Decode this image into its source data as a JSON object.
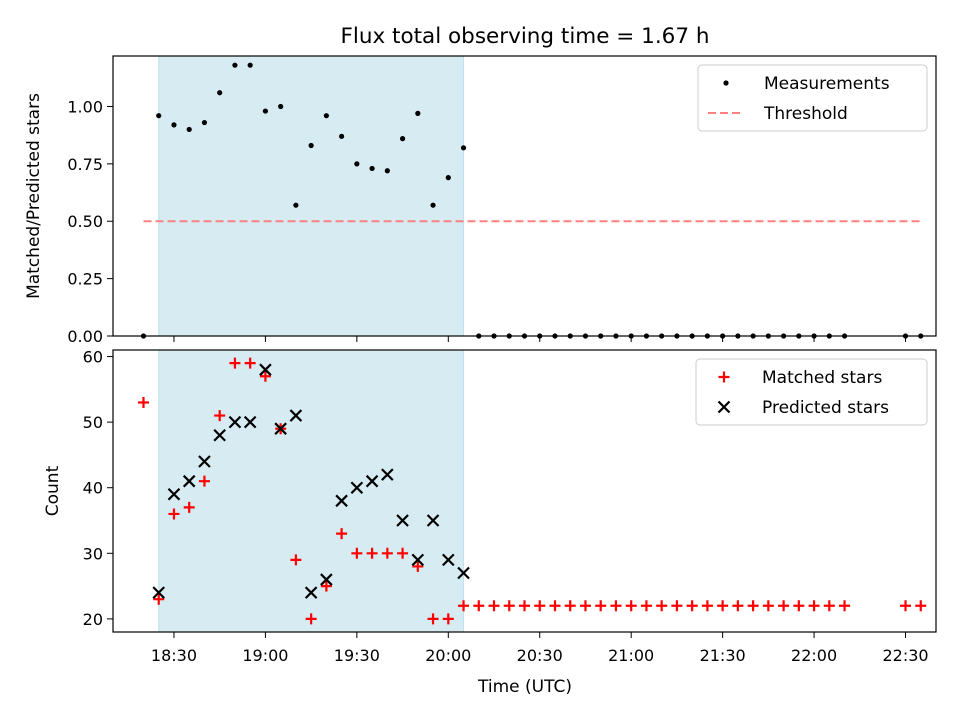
{
  "figure": {
    "title": "Flux total observing time = 1.67 h",
    "xlabel": "Time (UTC)"
  },
  "colors": {
    "observing_window": "#add8e6",
    "measurements": "#000000",
    "threshold": "#ff8080",
    "matched": "#ff0000",
    "predicted": "#000000"
  },
  "chart_data": [
    {
      "type": "scatter",
      "ylabel": "Matched/Predicted stars",
      "xlim": [
        "18:10",
        "22:40"
      ],
      "ylim": [
        0,
        1.22
      ],
      "yticks": [
        0.0,
        0.25,
        0.5,
        0.75,
        1.0
      ],
      "ytick_labels": [
        "0.00",
        "0.25",
        "0.50",
        "0.75",
        "1.00"
      ],
      "observing_window": [
        "18:25",
        "20:05"
      ],
      "legend_position": "top-right",
      "series": [
        {
          "name": "Measurements",
          "marker": "dot",
          "points": [
            [
              "18:20",
              0.0
            ],
            [
              "18:25",
              0.96
            ],
            [
              "18:30",
              0.92
            ],
            [
              "18:35",
              0.9
            ],
            [
              "18:40",
              0.93
            ],
            [
              "18:45",
              1.06
            ],
            [
              "18:50",
              1.18
            ],
            [
              "18:55",
              1.18
            ],
            [
              "19:00",
              0.98
            ],
            [
              "19:05",
              1.0
            ],
            [
              "19:10",
              0.57
            ],
            [
              "19:15",
              0.83
            ],
            [
              "19:20",
              0.96
            ],
            [
              "19:25",
              0.87
            ],
            [
              "19:30",
              0.75
            ],
            [
              "19:35",
              0.73
            ],
            [
              "19:40",
              0.72
            ],
            [
              "19:45",
              0.86
            ],
            [
              "19:50",
              0.97
            ],
            [
              "19:55",
              0.57
            ],
            [
              "20:00",
              0.69
            ],
            [
              "20:05",
              0.82
            ],
            [
              "20:10",
              0.0
            ],
            [
              "20:15",
              0.0
            ],
            [
              "20:20",
              0.0
            ],
            [
              "20:25",
              0.0
            ],
            [
              "20:30",
              0.0
            ],
            [
              "20:35",
              0.0
            ],
            [
              "20:40",
              0.0
            ],
            [
              "20:45",
              0.0
            ],
            [
              "20:50",
              0.0
            ],
            [
              "20:55",
              0.0
            ],
            [
              "21:00",
              0.0
            ],
            [
              "21:05",
              0.0
            ],
            [
              "21:10",
              0.0
            ],
            [
              "21:15",
              0.0
            ],
            [
              "21:20",
              0.0
            ],
            [
              "21:25",
              0.0
            ],
            [
              "21:30",
              0.0
            ],
            [
              "21:35",
              0.0
            ],
            [
              "21:40",
              0.0
            ],
            [
              "21:45",
              0.0
            ],
            [
              "21:50",
              0.0
            ],
            [
              "21:55",
              0.0
            ],
            [
              "22:00",
              0.0
            ],
            [
              "22:05",
              0.0
            ],
            [
              "22:10",
              0.0
            ],
            [
              "22:30",
              0.0
            ],
            [
              "22:35",
              0.0
            ]
          ]
        },
        {
          "name": "Threshold",
          "marker": "dashed-line",
          "points": [
            [
              "18:20",
              0.5
            ],
            [
              "22:35",
              0.5
            ]
          ]
        }
      ]
    },
    {
      "type": "scatter",
      "ylabel": "Count",
      "xlabel": "Time (UTC)",
      "xlim": [
        "18:10",
        "22:40"
      ],
      "ylim": [
        18,
        61
      ],
      "yticks": [
        20,
        30,
        40,
        50,
        60
      ],
      "ytick_labels": [
        "20",
        "30",
        "40",
        "50",
        "60"
      ],
      "xticks": [
        "18:30",
        "19:00",
        "19:30",
        "20:00",
        "20:30",
        "21:00",
        "21:30",
        "22:00",
        "22:30"
      ],
      "observing_window": [
        "18:25",
        "20:05"
      ],
      "legend_position": "top-right",
      "series": [
        {
          "name": "Matched stars",
          "marker": "plus",
          "points": [
            [
              "18:20",
              53
            ],
            [
              "18:25",
              23
            ],
            [
              "18:30",
              36
            ],
            [
              "18:35",
              37
            ],
            [
              "18:40",
              41
            ],
            [
              "18:45",
              51
            ],
            [
              "18:50",
              59
            ],
            [
              "18:55",
              59
            ],
            [
              "19:00",
              57
            ],
            [
              "19:05",
              49
            ],
            [
              "19:10",
              29
            ],
            [
              "19:15",
              20
            ],
            [
              "19:20",
              25
            ],
            [
              "19:25",
              33
            ],
            [
              "19:30",
              30
            ],
            [
              "19:35",
              30
            ],
            [
              "19:40",
              30
            ],
            [
              "19:45",
              30
            ],
            [
              "19:50",
              28
            ],
            [
              "19:55",
              20
            ],
            [
              "20:00",
              20
            ],
            [
              "20:05",
              22
            ],
            [
              "20:10",
              22
            ],
            [
              "20:15",
              22
            ],
            [
              "20:20",
              22
            ],
            [
              "20:25",
              22
            ],
            [
              "20:30",
              22
            ],
            [
              "20:35",
              22
            ],
            [
              "20:40",
              22
            ],
            [
              "20:45",
              22
            ],
            [
              "20:50",
              22
            ],
            [
              "20:55",
              22
            ],
            [
              "21:00",
              22
            ],
            [
              "21:05",
              22
            ],
            [
              "21:10",
              22
            ],
            [
              "21:15",
              22
            ],
            [
              "21:20",
              22
            ],
            [
              "21:25",
              22
            ],
            [
              "21:30",
              22
            ],
            [
              "21:35",
              22
            ],
            [
              "21:40",
              22
            ],
            [
              "21:45",
              22
            ],
            [
              "21:50",
              22
            ],
            [
              "21:55",
              22
            ],
            [
              "22:00",
              22
            ],
            [
              "22:05",
              22
            ],
            [
              "22:10",
              22
            ],
            [
              "22:30",
              22
            ],
            [
              "22:35",
              22
            ]
          ]
        },
        {
          "name": "Predicted stars",
          "marker": "x",
          "points": [
            [
              "18:25",
              24
            ],
            [
              "18:30",
              39
            ],
            [
              "18:35",
              41
            ],
            [
              "18:40",
              44
            ],
            [
              "18:45",
              48
            ],
            [
              "18:50",
              50
            ],
            [
              "18:55",
              50
            ],
            [
              "19:00",
              58
            ],
            [
              "19:05",
              49
            ],
            [
              "19:10",
              51
            ],
            [
              "19:15",
              24
            ],
            [
              "19:20",
              26
            ],
            [
              "19:25",
              38
            ],
            [
              "19:30",
              40
            ],
            [
              "19:35",
              41
            ],
            [
              "19:40",
              42
            ],
            [
              "19:45",
              35
            ],
            [
              "19:50",
              29
            ],
            [
              "19:55",
              35
            ],
            [
              "20:00",
              29
            ],
            [
              "20:05",
              27
            ]
          ]
        }
      ]
    }
  ]
}
